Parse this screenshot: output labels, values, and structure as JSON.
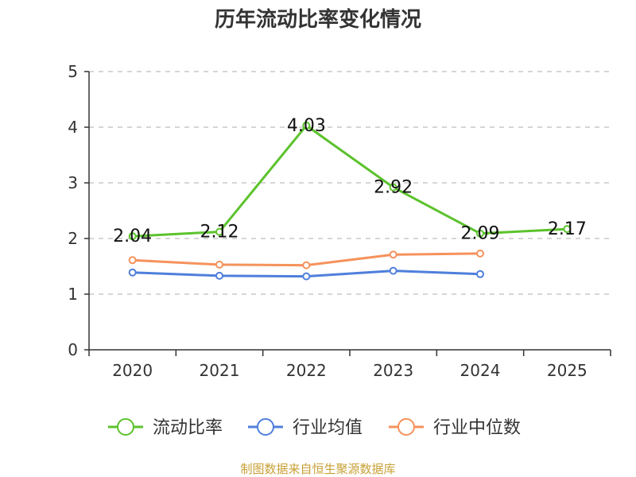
{
  "chart_data": {
    "type": "line",
    "title": "历年流动比率变化情况",
    "categories": [
      "2020",
      "2021",
      "2022",
      "2023",
      "2024",
      "2025"
    ],
    "ylim": [
      0,
      5
    ],
    "yticks": [
      0,
      1,
      2,
      3,
      4,
      5
    ],
    "grid": true,
    "legend_position": "bottom",
    "series": [
      {
        "name": "流动比率",
        "color": "#5cc22d",
        "values": [
          2.04,
          2.12,
          4.03,
          2.92,
          2.09,
          2.17
        ],
        "labels": [
          "2.04",
          "2.12",
          "4.03",
          "2.92",
          "2.09",
          "2.17"
        ]
      },
      {
        "name": "行业均值",
        "color": "#4f7fdb",
        "values": [
          1.39,
          1.33,
          1.32,
          1.42,
          1.36,
          null
        ]
      },
      {
        "name": "行业中位数",
        "color": "#f5925c",
        "values": [
          1.61,
          1.53,
          1.52,
          1.71,
          1.73,
          null
        ]
      }
    ]
  },
  "source": "制图数据来自恒生聚源数据库"
}
